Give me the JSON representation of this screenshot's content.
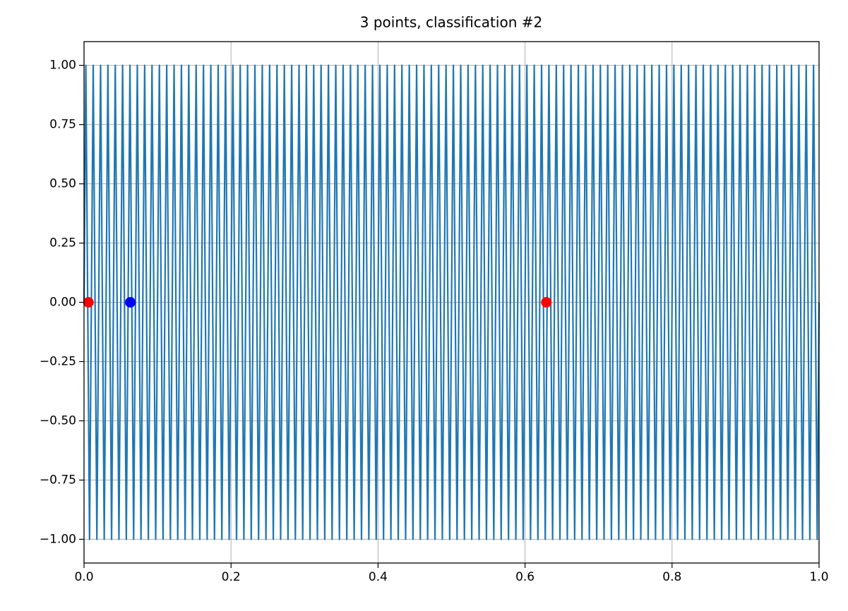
{
  "chart_data": {
    "type": "line",
    "title": "3 points, classification #2",
    "xlim": [
      0,
      1
    ],
    "ylim": [
      -1.1,
      1.1
    ],
    "grid": true,
    "xticks": [
      {
        "value": 0,
        "label": "0.0"
      },
      0.2,
      0.4,
      0.6,
      0.8,
      {
        "value": 1,
        "label": "1.0"
      }
    ],
    "yticks": [
      {
        "value": -1,
        "label": "−1.00"
      },
      {
        "value": -0.75,
        "label": "−0.75"
      },
      {
        "value": -0.5,
        "label": "−0.50"
      },
      {
        "value": -0.25,
        "label": "−0.25"
      },
      {
        "value": 0,
        "label": "0.00"
      },
      0.25,
      {
        "value": 0.5,
        "label": "0.50"
      },
      0.75,
      {
        "value": 1,
        "label": "1.00"
      }
    ],
    "series": [
      {
        "style": "line",
        "color": "#1f77b4",
        "x": [
          0,
          0.0025,
          0.0075,
          0.0125,
          0.0175,
          0.0225,
          0.0275,
          0.0325,
          0.0375,
          0.0425,
          0.0475,
          0.0525,
          0.0575,
          0.0625,
          0.0675,
          0.0725,
          0.0775,
          0.0825,
          0.0875,
          0.0925,
          0.0975,
          0.1025,
          0.1075,
          0.1125,
          0.1175,
          0.1225,
          0.1275,
          0.1325,
          0.1375,
          0.1425,
          0.1475,
          0.1525,
          0.1575,
          0.1625,
          0.1675,
          0.1725,
          0.1775,
          0.1825,
          0.1875,
          0.1925,
          0.1975,
          0.2025,
          0.2075,
          0.2125,
          0.2175,
          0.2225,
          0.2275,
          0.2325,
          0.2375,
          0.2425,
          0.2475,
          0.2525,
          0.2575,
          0.2625,
          0.2675,
          0.2725,
          0.2775,
          0.2825,
          0.2875,
          0.2925,
          0.2975,
          0.3025,
          0.3075,
          0.3125,
          0.3175,
          0.3225,
          0.3275,
          0.3325,
          0.3375,
          0.3425,
          0.3475,
          0.3525,
          0.3575,
          0.3625,
          0.3675,
          0.3725,
          0.3775,
          0.3825,
          0.3875,
          0.3925,
          0.3975,
          0.4025,
          0.4075,
          0.4125,
          0.4175,
          0.4225,
          0.4275,
          0.4325,
          0.4375,
          0.4425,
          0.4475,
          0.4525,
          0.4575,
          0.4625,
          0.4675,
          0.4725,
          0.4775,
          0.4825,
          0.4875,
          0.4925,
          0.4975,
          0.5025,
          0.5075,
          0.5125,
          0.5175,
          0.5225,
          0.5275,
          0.5325,
          0.5375,
          0.5425,
          0.5475,
          0.5525,
          0.5575,
          0.5625,
          0.5675,
          0.5725,
          0.5775,
          0.5825,
          0.5875,
          0.5925,
          0.5975,
          0.6025,
          0.6075,
          0.6125,
          0.6175,
          0.6225,
          0.6275,
          0.6325,
          0.6375,
          0.6425,
          0.6475,
          0.6525,
          0.6575,
          0.6625,
          0.6675,
          0.6725,
          0.6775,
          0.6825,
          0.6875,
          0.6925,
          0.6975,
          0.7025,
          0.7075,
          0.7125,
          0.7175,
          0.7225,
          0.7275,
          0.7325,
          0.7375,
          0.7425,
          0.7475,
          0.7525,
          0.7575,
          0.7625,
          0.7675,
          0.7725,
          0.7775,
          0.7825,
          0.7875,
          0.7925,
          0.7975,
          0.8025,
          0.8075,
          0.8125,
          0.8175,
          0.8225,
          0.8275,
          0.8325,
          0.8375,
          0.8425,
          0.8475,
          0.8525,
          0.8575,
          0.8625,
          0.8675,
          0.8725,
          0.8775,
          0.8825,
          0.8875,
          0.8925,
          0.8975,
          0.9025,
          0.9075,
          0.9125,
          0.9175,
          0.9225,
          0.9275,
          0.9325,
          0.9375,
          0.9425,
          0.9475,
          0.9525,
          0.9575,
          0.9625,
          0.9675,
          0.9725,
          0.9775,
          0.9825,
          0.9875,
          0.9925,
          0.9975,
          1
        ],
        "values": [
          0,
          1,
          -1,
          1,
          -1,
          1,
          -1,
          1,
          -1,
          1,
          -1,
          1,
          -1,
          1,
          -1,
          1,
          -1,
          1,
          -1,
          1,
          -1,
          1,
          -1,
          1,
          -1,
          1,
          -1,
          1,
          -1,
          1,
          -1,
          1,
          -1,
          1,
          -1,
          1,
          -1,
          1,
          -1,
          1,
          -1,
          1,
          -1,
          1,
          -1,
          1,
          -1,
          1,
          -1,
          1,
          -1,
          1,
          -1,
          1,
          -1,
          1,
          -1,
          1,
          -1,
          1,
          -1,
          1,
          -1,
          1,
          -1,
          1,
          -1,
          1,
          -1,
          1,
          -1,
          1,
          -1,
          1,
          -1,
          1,
          -1,
          1,
          -1,
          1,
          -1,
          1,
          -1,
          1,
          -1,
          1,
          -1,
          1,
          -1,
          1,
          -1,
          1,
          -1,
          1,
          -1,
          1,
          -1,
          1,
          -1,
          1,
          -1,
          1,
          -1,
          1,
          -1,
          1,
          -1,
          1,
          -1,
          1,
          -1,
          1,
          -1,
          1,
          -1,
          1,
          -1,
          1,
          -1,
          1,
          -1,
          1,
          -1,
          1,
          -1,
          1,
          -1,
          1,
          -1,
          1,
          -1,
          1,
          -1,
          1,
          -1,
          1,
          -1,
          1,
          -1,
          1,
          -1,
          1,
          -1,
          1,
          -1,
          1,
          -1,
          1,
          -1,
          1,
          -1,
          1,
          -1,
          1,
          -1,
          1,
          -1,
          1,
          -1,
          1,
          -1,
          1,
          -1,
          1,
          -1,
          1,
          -1,
          1,
          -1,
          1,
          -1,
          1,
          -1,
          1,
          -1,
          1,
          -1,
          1,
          -1,
          1,
          -1,
          1,
          -1,
          1,
          -1,
          1,
          -1,
          1,
          -1,
          1,
          -1,
          1,
          -1,
          1,
          -1,
          1,
          -1,
          1,
          -1,
          1,
          -1,
          0
        ]
      },
      {
        "style": "points",
        "x": [
          0.006,
          0.063,
          0.629
        ],
        "values": [
          0,
          0,
          0
        ],
        "colors": [
          "#ff0000",
          "#0000ff",
          "#ff0000"
        ]
      }
    ]
  }
}
